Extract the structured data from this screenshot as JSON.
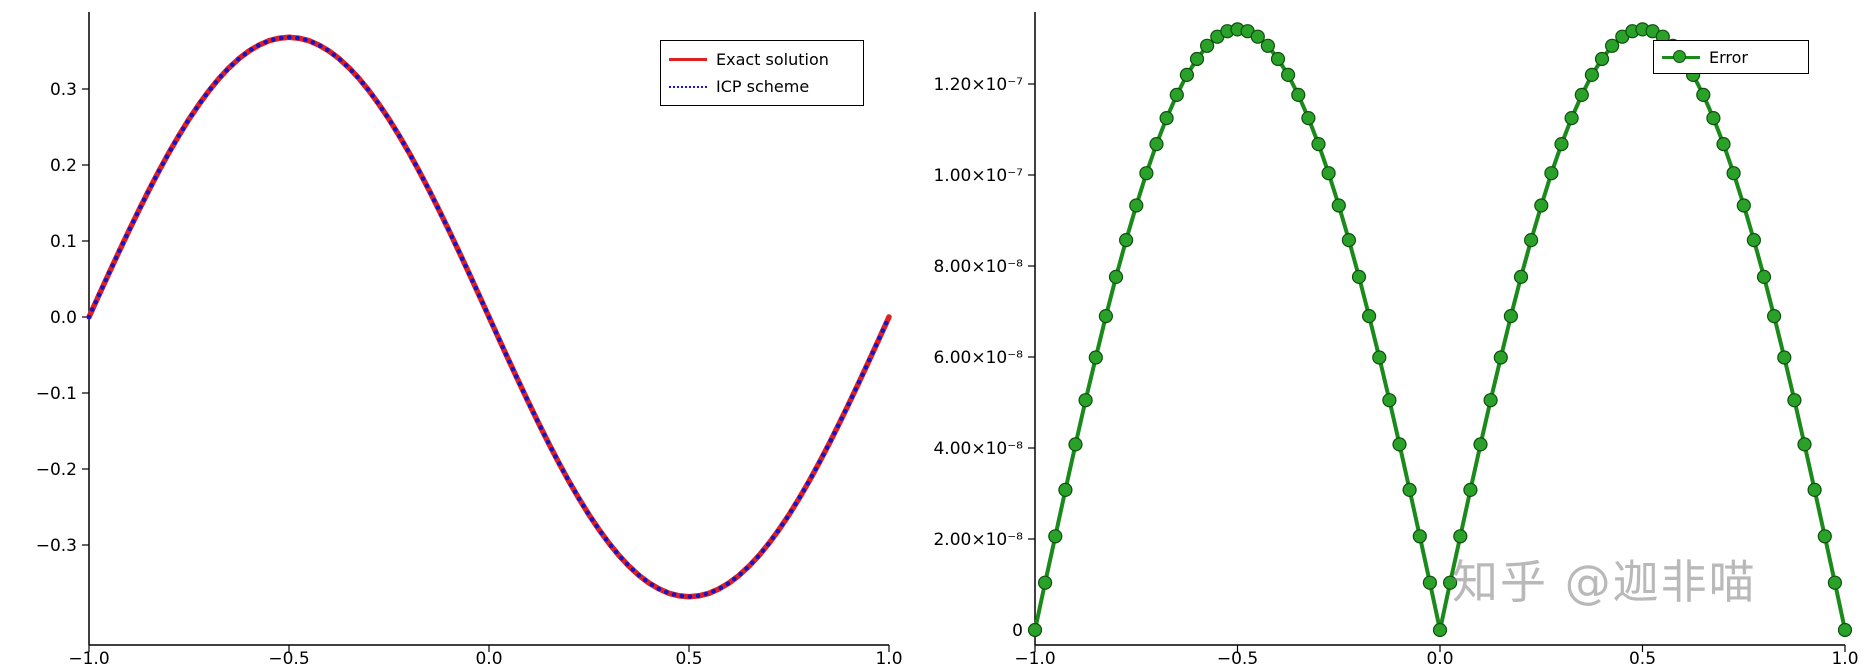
{
  "figure": {
    "background": "#ffffff"
  },
  "watermark": {
    "text": "知乎 @迦非喵"
  },
  "chart_data": [
    {
      "name": "solution-comparison",
      "type": "line",
      "title": "",
      "xlabel": "",
      "ylabel": "",
      "xlim": [
        -1.0,
        1.0
      ],
      "ylim": [
        -0.43,
        0.4
      ],
      "grid": false,
      "legend": {
        "position": "top-right",
        "entries": [
          {
            "label": "Exact solution",
            "color": "#e02020",
            "style": "solid"
          },
          {
            "label": "ICP scheme",
            "color": "#1515cc",
            "style": "dotted"
          }
        ]
      },
      "xticks": {
        "values": [
          -1.0,
          -0.5,
          0.0,
          0.5,
          1.0
        ],
        "labels": [
          "−1.0",
          "−0.5",
          "0.0",
          "0.5",
          "1.0"
        ]
      },
      "yticks": {
        "values": [
          0.3,
          0.2,
          0.1,
          0.0,
          -0.1,
          -0.2,
          -0.3
        ],
        "labels": [
          "0.3",
          "0.2",
          "0.1",
          "0.0",
          "−0.1",
          "−0.2",
          "−0.3"
        ]
      },
      "x": [
        -1,
        -0.975,
        -0.95,
        -0.925,
        -0.9,
        -0.875,
        -0.85,
        -0.825,
        -0.8,
        -0.775,
        -0.75,
        -0.725,
        -0.7,
        -0.675,
        -0.65,
        -0.625,
        -0.6,
        -0.575,
        -0.55,
        -0.525,
        -0.5,
        -0.475,
        -0.45,
        -0.425,
        -0.4,
        -0.375,
        -0.35,
        -0.325,
        -0.3,
        -0.275,
        -0.25,
        -0.225,
        -0.2,
        -0.175,
        -0.15,
        -0.125,
        -0.1,
        -0.075,
        -0.05,
        -0.025,
        0,
        0.025,
        0.05,
        0.075,
        0.1,
        0.125,
        0.15,
        0.175,
        0.2,
        0.225,
        0.25,
        0.275,
        0.3,
        0.325,
        0.35,
        0.375,
        0.4,
        0.425,
        0.45,
        0.475,
        0.5,
        0.525,
        0.55,
        0.575,
        0.6,
        0.625,
        0.65,
        0.675,
        0.7,
        0.725,
        0.75,
        0.775,
        0.8,
        0.825,
        0.85,
        0.875,
        0.9,
        0.925,
        0.95,
        0.975,
        1
      ],
      "series": [
        {
          "name": "Exact solution",
          "color": "#e02020",
          "style": "solid",
          "width": 5.5,
          "values": [
            0,
            0.0289,
            0.0576,
            0.0859,
            0.1137,
            0.1408,
            0.1671,
            0.1923,
            0.2163,
            0.239,
            0.2602,
            0.2798,
            0.2977,
            0.3138,
            0.3279,
            0.34,
            0.35,
            0.3578,
            0.3635,
            0.3669,
            0.368,
            0.3669,
            0.3635,
            0.3578,
            0.35,
            0.34,
            0.3279,
            0.3138,
            0.2977,
            0.2798,
            0.2602,
            0.239,
            0.2163,
            0.1923,
            0.1671,
            0.1408,
            0.1137,
            0.0859,
            0.0576,
            0.0289,
            0,
            -0.0289,
            -0.0576,
            -0.0859,
            -0.1137,
            -0.1408,
            -0.1671,
            -0.1923,
            -0.2163,
            -0.239,
            -0.2602,
            -0.2798,
            -0.2977,
            -0.3138,
            -0.3279,
            -0.34,
            -0.35,
            -0.3578,
            -0.3635,
            -0.3669,
            -0.368,
            -0.3669,
            -0.3635,
            -0.3578,
            -0.35,
            -0.34,
            -0.3279,
            -0.3138,
            -0.2977,
            -0.2798,
            -0.2602,
            -0.239,
            -0.2163,
            -0.1923,
            -0.1671,
            -0.1408,
            -0.1137,
            -0.0859,
            -0.0576,
            -0.0289,
            0
          ]
        },
        {
          "name": "ICP scheme",
          "color": "#1515cc",
          "style": "dotted",
          "width": 4.6,
          "values": [
            0,
            0.0289,
            0.0576,
            0.0859,
            0.1137,
            0.1408,
            0.1671,
            0.1923,
            0.2163,
            0.239,
            0.2602,
            0.2798,
            0.2977,
            0.3138,
            0.3279,
            0.34,
            0.35,
            0.3578,
            0.3635,
            0.3669,
            0.368,
            0.3669,
            0.3635,
            0.3578,
            0.35,
            0.34,
            0.3279,
            0.3138,
            0.2977,
            0.2798,
            0.2602,
            0.239,
            0.2163,
            0.1923,
            0.1671,
            0.1408,
            0.1137,
            0.0859,
            0.0576,
            0.0289,
            0,
            -0.0289,
            -0.0576,
            -0.0859,
            -0.1137,
            -0.1408,
            -0.1671,
            -0.1923,
            -0.2163,
            -0.239,
            -0.2602,
            -0.2798,
            -0.2977,
            -0.3138,
            -0.3279,
            -0.34,
            -0.35,
            -0.3578,
            -0.3635,
            -0.3669,
            -0.368,
            -0.3669,
            -0.3635,
            -0.3578,
            -0.35,
            -0.34,
            -0.3279,
            -0.3138,
            -0.2977,
            -0.2798,
            -0.2602,
            -0.239,
            -0.2163,
            -0.1923,
            -0.1671,
            -0.1408,
            -0.1137,
            -0.0859,
            -0.0576,
            -0.0289,
            0
          ]
        }
      ]
    },
    {
      "name": "error",
      "type": "line",
      "title": "",
      "xlabel": "",
      "ylabel": "",
      "xlim": [
        -1.0,
        1.0
      ],
      "ylim": [
        0,
        1.39e-07
      ],
      "grid": false,
      "legend": {
        "position": "top-right",
        "entries": [
          {
            "label": "Error",
            "color": "#1a8a1a",
            "style": "solid-marker"
          }
        ]
      },
      "xticks": {
        "values": [
          -1.0,
          -0.5,
          0.0,
          0.5,
          1.0
        ],
        "labels": [
          "−1.0",
          "−0.5",
          "0.0",
          "0.5",
          "1.0"
        ]
      },
      "yticks": {
        "values": [
          0,
          2e-08,
          4e-08,
          6e-08,
          8e-08,
          1e-07,
          1.2e-07
        ],
        "labels": [
          "0",
          "2.00×10⁻⁸",
          "4.00×10⁻⁸",
          "6.00×10⁻⁸",
          "8.00×10⁻⁸",
          "1.00×10⁻⁷",
          "1.20×10⁻⁷"
        ]
      },
      "x": [
        -1,
        -0.975,
        -0.95,
        -0.925,
        -0.9,
        -0.875,
        -0.85,
        -0.825,
        -0.8,
        -0.775,
        -0.75,
        -0.725,
        -0.7,
        -0.675,
        -0.65,
        -0.625,
        -0.6,
        -0.575,
        -0.55,
        -0.525,
        -0.5,
        -0.475,
        -0.45,
        -0.425,
        -0.4,
        -0.375,
        -0.35,
        -0.325,
        -0.3,
        -0.275,
        -0.25,
        -0.225,
        -0.2,
        -0.175,
        -0.15,
        -0.125,
        -0.1,
        -0.075,
        -0.05,
        -0.025,
        0,
        0.025,
        0.05,
        0.075,
        0.1,
        0.125,
        0.15,
        0.175,
        0.2,
        0.225,
        0.25,
        0.275,
        0.3,
        0.325,
        0.35,
        0.375,
        0.4,
        0.425,
        0.45,
        0.475,
        0.5,
        0.525,
        0.55,
        0.575,
        0.6,
        0.625,
        0.65,
        0.675,
        0.7,
        0.725,
        0.75,
        0.775,
        0.8,
        0.825,
        0.85,
        0.875,
        0.9,
        0.925,
        0.95,
        0.975,
        1
      ],
      "series": [
        {
          "name": "Error",
          "color": "#1a8a1a",
          "style": "solid",
          "width": 4,
          "marker": "circle",
          "marker_size": 6.5,
          "marker_fill": "#2aa22a",
          "marker_stroke": "#0d4f0d",
          "values": [
            0,
            1.04e-08,
            2.06e-08,
            3.08e-08,
            4.08e-08,
            5.05e-08,
            5.99e-08,
            6.9e-08,
            7.76e-08,
            8.57e-08,
            9.33e-08,
            1.004e-07,
            1.068e-07,
            1.125e-07,
            1.176e-07,
            1.22e-07,
            1.255e-07,
            1.284e-07,
            1.304e-07,
            1.316e-07,
            1.32e-07,
            1.316e-07,
            1.304e-07,
            1.284e-07,
            1.255e-07,
            1.22e-07,
            1.176e-07,
            1.125e-07,
            1.068e-07,
            1.004e-07,
            9.33e-08,
            8.57e-08,
            7.76e-08,
            6.9e-08,
            5.99e-08,
            5.05e-08,
            4.08e-08,
            3.08e-08,
            2.06e-08,
            1.04e-08,
            0,
            1.04e-08,
            2.06e-08,
            3.08e-08,
            4.08e-08,
            5.05e-08,
            5.99e-08,
            6.9e-08,
            7.76e-08,
            8.57e-08,
            9.33e-08,
            1.004e-07,
            1.068e-07,
            1.125e-07,
            1.176e-07,
            1.22e-07,
            1.255e-07,
            1.284e-07,
            1.304e-07,
            1.316e-07,
            1.32e-07,
            1.316e-07,
            1.304e-07,
            1.284e-07,
            1.255e-07,
            1.22e-07,
            1.176e-07,
            1.125e-07,
            1.068e-07,
            1.004e-07,
            9.33e-08,
            8.57e-08,
            7.76e-08,
            6.9e-08,
            5.99e-08,
            5.05e-08,
            4.08e-08,
            3.08e-08,
            2.06e-08,
            1.04e-08,
            0
          ]
        }
      ]
    }
  ]
}
